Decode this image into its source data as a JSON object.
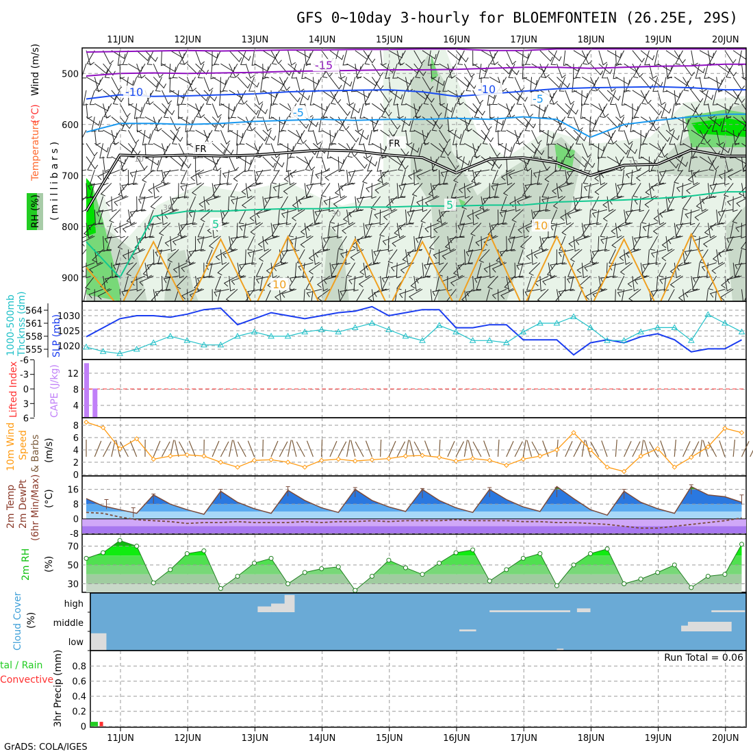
{
  "title": "GFS 0~10day 3-hourly for BLOEMFONTEIN (26.25E, 29S)",
  "footer": "GrADS: COLA/IGES",
  "day_labels": [
    "11JUN",
    "12JUN",
    "13JUN",
    "14JUN",
    "15JUN",
    "16JUN",
    "17JUN",
    "18JUN",
    "19JUN",
    "20JUN"
  ],
  "colors": {
    "slp": "#1a3cf0",
    "thickness": "#20c0c8",
    "cape": "#c080f8",
    "li": "#ff3030",
    "wind_speed": "#ff9a10",
    "barbs": "#7a5a3a",
    "rh": "#10c010",
    "cloud_bg": "#6aaad6",
    "cloud": "#dcdcdc",
    "precip_total": "#22cc22",
    "precip_conv": "#ff3030"
  },
  "chart_data": [
    {
      "type": "line",
      "name": "upper-air",
      "labels": {
        "rh": "RH (%)",
        "temperature": "Temperature",
        "degc": "(°C)",
        "wind": "Wind (m/s)",
        "ylabel": "( m i l l i b a r s )"
      },
      "ylim": [
        950,
        450
      ],
      "yticks": [
        "500",
        "600",
        "700",
        "800",
        "900"
      ],
      "x_step_days": 0.5,
      "isotherms": [
        {
          "level": "-20",
          "color": "#9010c0",
          "label": "",
          "values": [
            458,
            457,
            456,
            455,
            456,
            455,
            454,
            454,
            453,
            453,
            452,
            452,
            455,
            455,
            452,
            452,
            452,
            452,
            452,
            452
          ]
        },
        {
          "level": "-15",
          "color": "#9010c0",
          "label": "-15",
          "values": [
            505,
            500,
            499,
            500,
            499,
            498,
            496,
            495,
            494,
            493,
            493,
            492,
            490,
            488,
            488,
            490,
            488,
            486,
            485,
            482
          ]
        },
        {
          "level": "-10",
          "color": "#1a4cf0",
          "label": "-10",
          "values": [
            550,
            542,
            545,
            544,
            542,
            540,
            536,
            534,
            533,
            532,
            536,
            545,
            540,
            535,
            530,
            528,
            527,
            526,
            528,
            532
          ]
        },
        {
          "level": "-5",
          "color": "#1898f0",
          "label": "-5",
          "values": [
            615,
            598,
            598,
            600,
            598,
            594,
            592,
            590,
            592,
            590,
            590,
            588,
            590,
            585,
            590,
            625,
            600,
            592,
            585,
            580
          ]
        },
        {
          "level": "0",
          "color": "#000000",
          "label": "FR",
          "values": [
            770,
            660,
            662,
            660,
            662,
            660,
            655,
            650,
            652,
            660,
            665,
            695,
            668,
            665,
            675,
            700,
            680,
            678,
            650,
            662
          ]
        },
        {
          "level": "5",
          "color": "#10c890",
          "label": "5",
          "values": [
            830,
            900,
            780,
            770,
            770,
            767,
            765,
            765,
            762,
            762,
            760,
            760,
            758,
            758,
            752,
            750,
            748,
            745,
            740,
            732
          ]
        },
        {
          "level": "10",
          "color": "#f0a020",
          "label": "10",
          "values": [
            880,
            960,
            830,
            960,
            825,
            960,
            820,
            960,
            825,
            960,
            830,
            960,
            815,
            960,
            820,
            960,
            825,
            960,
            815,
            960
          ]
        }
      ],
      "rh_labels": [
        "10",
        "30",
        "30",
        "10"
      ]
    },
    {
      "type": "line",
      "name": "slp-thickness",
      "labels": {
        "thickness": "1000-500mb",
        "thickness2": "Thcknss (dm)",
        "slp": "SLP (mb)"
      },
      "x_step_days": 0.25,
      "slp_ticks": [
        "1030",
        "1025",
        "1020"
      ],
      "thickness_ticks": [
        "564",
        "561",
        "558",
        "555"
      ],
      "series": [
        {
          "name": "SLP (mb)",
          "values": [
            1023,
            1026,
            1029,
            1030,
            1030,
            1029.5,
            1030.5,
            1032,
            1032.5,
            1027,
            1029,
            1031,
            1030,
            1029,
            1030,
            1031,
            1031.5,
            1033,
            1030,
            1031,
            1032,
            1032,
            1026,
            1026,
            1027,
            1027,
            1022,
            1022,
            1022,
            1017,
            1021,
            1022,
            1021,
            1023,
            1024,
            1022,
            1018,
            1019,
            1019,
            1022
          ]
        },
        {
          "name": "1000-500mb Thickness (dm)",
          "values": [
            555.5,
            554.5,
            554,
            555,
            556.5,
            558,
            557,
            556,
            556,
            558,
            559,
            558,
            558,
            559,
            559.5,
            559,
            560,
            561,
            559.5,
            558,
            557,
            560.5,
            559,
            557,
            557,
            556.5,
            559,
            561,
            561,
            562.5,
            560,
            557,
            557,
            559,
            560,
            560,
            557,
            563,
            561,
            559
          ]
        }
      ]
    },
    {
      "type": "bar",
      "name": "cape-li",
      "labels": {
        "li": "Lifted Index",
        "cape": "CAPE (J/kg)"
      },
      "li_ticks": [
        "-6",
        "-3",
        "0",
        "3",
        "6"
      ],
      "cape_ticks": [
        "12",
        "8",
        "4"
      ],
      "cape": [
        {
          "day": 0.0,
          "value": 14.5
        },
        {
          "day": 0.125,
          "value": 8.2
        }
      ],
      "lifted_index_line": 0
    },
    {
      "type": "line",
      "name": "10m-wind",
      "labels": {
        "l1": "10m Wind",
        "l2": "Speed",
        "l3": "& Barbs",
        "l4": "(m/s)"
      },
      "yticks": [
        "8",
        "6",
        "4",
        "2",
        "0"
      ],
      "x_step_days": 0.25,
      "values": [
        8.5,
        7.6,
        4.2,
        5.8,
        2.5,
        3,
        3.2,
        3,
        2,
        1.2,
        2.3,
        2.4,
        2,
        1.2,
        2.3,
        2.5,
        2.2,
        2.4,
        2.6,
        3,
        3.1,
        2.8,
        2.2,
        2.6,
        2.3,
        1.5,
        2.5,
        3,
        4,
        6.8,
        4,
        1.2,
        0.5,
        3,
        4.2,
        1.2,
        2.8,
        4.5,
        7.5,
        6.8
      ]
    },
    {
      "type": "area",
      "name": "2m-temp",
      "labels": {
        "l1": "2m Temp",
        "l2": "2m DewPt",
        "l3": "(6hr Min/Max)",
        "l4": "(°C)"
      },
      "yticks": [
        "16",
        "8",
        "0",
        "-8"
      ],
      "x_step_days": 0.25,
      "temperature": [
        11,
        7,
        5,
        3,
        13,
        8,
        5,
        2.5,
        15,
        9,
        5.5,
        3,
        15.5,
        10,
        6,
        3.5,
        16,
        10,
        6.5,
        4,
        16,
        10,
        6,
        3.5,
        16,
        10.5,
        6.5,
        4,
        17.5,
        11,
        5,
        2,
        15,
        9,
        5.5,
        3,
        17.5,
        13,
        12,
        9
      ],
      "dewpoint": [
        3.5,
        3,
        1,
        -0.5,
        -1,
        -1.5,
        -2.5,
        -2,
        -2,
        -1.5,
        -2,
        -2,
        -2,
        -1.5,
        -2,
        -1.5,
        -1.5,
        -1,
        -1.5,
        -1,
        -1,
        -1,
        -0.5,
        -1,
        -1,
        -1,
        -1.5,
        -1.5,
        -2,
        -2,
        -2.5,
        -3,
        -4,
        -5,
        -5,
        -4,
        -3,
        -2,
        -1,
        0.5
      ],
      "max6h": [
        {
          "day": 0.3,
          "value": 10.5
        },
        {
          "day": 0.7,
          "value": 6
        },
        {
          "day": 1.0,
          "value": 13.5
        },
        {
          "day": 2.0,
          "value": 16
        },
        {
          "day": 3.0,
          "value": 17.5
        },
        {
          "day": 4.0,
          "value": 17
        },
        {
          "day": 5.0,
          "value": 16.5
        },
        {
          "day": 6.0,
          "value": 17
        },
        {
          "day": 7.0,
          "value": 17
        },
        {
          "day": 8.0,
          "value": 16
        },
        {
          "day": 9.0,
          "value": 18.5
        },
        {
          "day": 9.75,
          "value": 13
        }
      ]
    },
    {
      "type": "area",
      "name": "2m-rh",
      "labels": {
        "l1": "2m RH",
        "l2": "(%)"
      },
      "yticks": [
        "70",
        "50",
        "30"
      ],
      "x_step_days": 0.25,
      "values": [
        57,
        63,
        76,
        70,
        31,
        45,
        62,
        65,
        25,
        38,
        52,
        57,
        30,
        42,
        46,
        48,
        23,
        38,
        55,
        47,
        40,
        52,
        63,
        66,
        33,
        45,
        57,
        62,
        28,
        50,
        62,
        67,
        30,
        35,
        42,
        50,
        26,
        38,
        40,
        72
      ]
    },
    {
      "type": "heatmap",
      "name": "cloud-cover",
      "labels": {
        "l1": "Cloud Cover",
        "l2": "(%)"
      },
      "levels": [
        "high",
        "middle",
        "low"
      ],
      "cloud_blocks": [
        {
          "level": "low",
          "start_day": 0.06,
          "end_day": 0.3,
          "cover": 0.9
        },
        {
          "level": "high",
          "start_day": 2.55,
          "end_day": 2.75,
          "cover": 0.3
        },
        {
          "level": "high",
          "start_day": 2.75,
          "end_day": 3.0,
          "cover": 0.45
        },
        {
          "level": "high",
          "start_day": 2.95,
          "end_day": 3.1,
          "cover": 0.9
        },
        {
          "level": "high",
          "start_day": 6.0,
          "end_day": 7.2,
          "cover": 0.1
        },
        {
          "level": "high",
          "start_day": 7.3,
          "end_day": 7.5,
          "cover": 0.2
        },
        {
          "level": "high",
          "start_day": 9.3,
          "end_day": 9.8,
          "cover": 0.1
        },
        {
          "level": "middle",
          "start_day": 5.55,
          "end_day": 5.8,
          "cover": 0.1
        },
        {
          "level": "middle",
          "start_day": 8.85,
          "end_day": 9.0,
          "cover": 0.3
        },
        {
          "level": "middle",
          "start_day": 8.95,
          "end_day": 9.6,
          "cover": 0.5
        },
        {
          "level": "low",
          "start_day": 7.0,
          "end_day": 7.1,
          "cover": 0.1
        }
      ]
    },
    {
      "type": "bar",
      "name": "precip",
      "labels": {
        "l1": "tal / Rain",
        "l2": "Convective",
        "l3": "3hr Precip (mm)",
        "run_total": "Run Total = 0.06"
      },
      "yticks": [
        "0.8",
        "0.6",
        "0.4",
        "0.2",
        "0"
      ],
      "total": [
        {
          "day": 0.06,
          "value": 0.06
        }
      ],
      "convective": [
        {
          "day": 0.24,
          "value": 0.06
        }
      ]
    }
  ]
}
